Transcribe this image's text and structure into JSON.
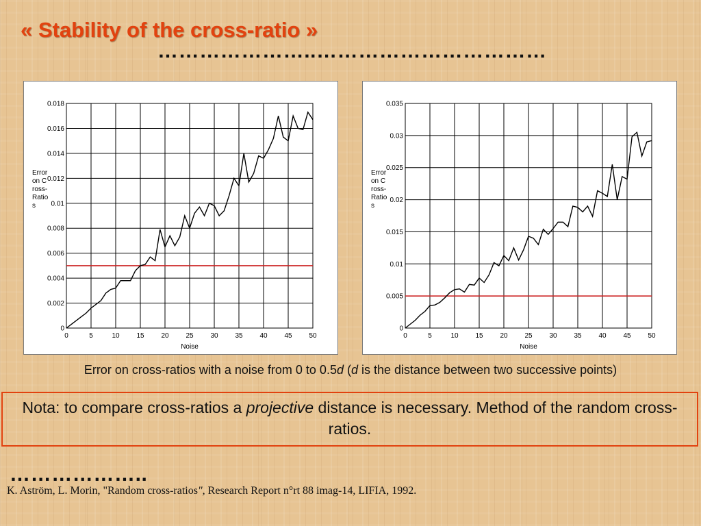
{
  "slide": {
    "title": "« Stability of the cross-ratio »",
    "title_dots": "…………………..……………………………",
    "lower_dots": "………………..",
    "caption": {
      "part1": "Error on cross-ratios with a noise from 0 to 0.5",
      "d1": "d",
      "part2": " (",
      "d2": "d",
      "part3": " is the distance between two successive points)"
    },
    "nota": {
      "part1": "Nota: to compare cross-ratios a ",
      "italic": "projective",
      "part2": " distance is necessary.  Method of the random cross-ratios."
    },
    "reference": {
      "part1": "K. Aström, L. Morin, \"Random cross-ratios",
      "italic": "\",",
      "part2": " Research Report n°rt 88 imag-14, LIFIA, 1992."
    }
  },
  "colors": {
    "title": "#e2420f",
    "threshold_line": "#cc2222",
    "data_line": "#000000",
    "box_border": "#e2420f"
  },
  "chart_data": [
    {
      "type": "line",
      "xlabel": "Noise",
      "ylabel": "Error on Cross-Ratios",
      "xlim": [
        0,
        50
      ],
      "ylim": [
        0,
        0.018
      ],
      "xticks": [
        0,
        5,
        10,
        15,
        20,
        25,
        30,
        35,
        40,
        45,
        50
      ],
      "yticks": [
        "0",
        "0.002",
        "0.004",
        "0.006",
        "0.008",
        "0.01",
        "0.012",
        "0.014",
        "0.016",
        "0.018"
      ],
      "grid": true,
      "reference_line": 0.005,
      "series": [
        {
          "x": [
            0,
            1,
            2,
            3,
            4,
            5,
            6,
            7,
            8,
            9,
            10,
            11,
            12,
            13,
            14,
            15,
            16,
            17,
            18,
            19,
            20,
            21,
            22,
            23,
            24,
            25,
            26,
            27,
            28,
            29,
            30,
            31,
            32,
            33,
            34,
            35,
            36,
            37,
            38,
            39,
            40,
            41,
            42,
            43,
            44,
            45,
            46,
            47,
            48,
            49,
            50
          ],
          "y": [
            0,
            0.0003,
            0.0006,
            0.0009,
            0.0012,
            0.0016,
            0.0019,
            0.0022,
            0.0028,
            0.0031,
            0.0032,
            0.0038,
            0.0038,
            0.0038,
            0.0046,
            0.005,
            0.0051,
            0.0057,
            0.0054,
            0.0079,
            0.0065,
            0.0074,
            0.0066,
            0.0073,
            0.009,
            0.008,
            0.0092,
            0.0097,
            0.009,
            0.01,
            0.0098,
            0.009,
            0.0094,
            0.0106,
            0.012,
            0.0114,
            0.014,
            0.0117,
            0.0124,
            0.0138,
            0.0136,
            0.0143,
            0.0152,
            0.017,
            0.0153,
            0.015,
            0.017,
            0.016,
            0.0159,
            0.0173,
            0.0167
          ]
        }
      ]
    },
    {
      "type": "line",
      "xlabel": "Noise",
      "ylabel": "Error on Cross-Ratios",
      "xlim": [
        0,
        50
      ],
      "ylim": [
        0,
        0.035
      ],
      "xticks": [
        0,
        5,
        10,
        15,
        20,
        25,
        30,
        35,
        40,
        45,
        50
      ],
      "yticks": [
        "0",
        "0.005",
        "0.01",
        "0.015",
        "0.02",
        "0.025",
        "0.03",
        "0.035"
      ],
      "grid": true,
      "reference_line": 0.005,
      "series": [
        {
          "x": [
            0,
            1,
            2,
            3,
            4,
            5,
            6,
            7,
            8,
            9,
            10,
            11,
            12,
            13,
            14,
            15,
            16,
            17,
            18,
            19,
            20,
            21,
            22,
            23,
            24,
            25,
            26,
            27,
            28,
            29,
            30,
            31,
            32,
            33,
            34,
            35,
            36,
            37,
            38,
            39,
            40,
            41,
            42,
            43,
            44,
            45,
            46,
            47,
            48,
            49,
            50
          ],
          "y": [
            0,
            0.0006,
            0.0012,
            0.002,
            0.0026,
            0.0035,
            0.0036,
            0.004,
            0.0047,
            0.0055,
            0.006,
            0.0061,
            0.0056,
            0.0068,
            0.0067,
            0.0078,
            0.0071,
            0.0083,
            0.0102,
            0.0097,
            0.0113,
            0.0105,
            0.0125,
            0.0106,
            0.0122,
            0.0143,
            0.014,
            0.013,
            0.0154,
            0.0146,
            0.0155,
            0.0165,
            0.0165,
            0.0158,
            0.019,
            0.0188,
            0.0181,
            0.019,
            0.0174,
            0.0214,
            0.021,
            0.0205,
            0.0255,
            0.02,
            0.0236,
            0.0232,
            0.0298,
            0.0305,
            0.0268,
            0.029,
            0.0292
          ]
        }
      ]
    }
  ]
}
